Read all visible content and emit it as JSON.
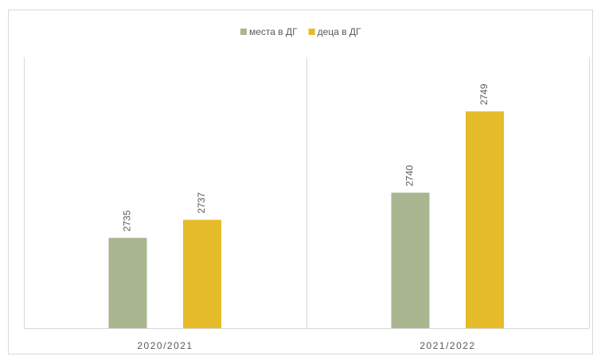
{
  "chart_data": {
    "type": "bar",
    "categories": [
      "2020/2021",
      "2021/2022"
    ],
    "series": [
      {
        "name": "места в ДГ",
        "color": "#a9b68f",
        "values": [
          2735,
          2740
        ]
      },
      {
        "name": "деца в ДГ",
        "color": "#e6bb2a",
        "values": [
          2737,
          2749
        ]
      }
    ],
    "ylim": [
      2725,
      2755
    ],
    "legend": "top"
  }
}
